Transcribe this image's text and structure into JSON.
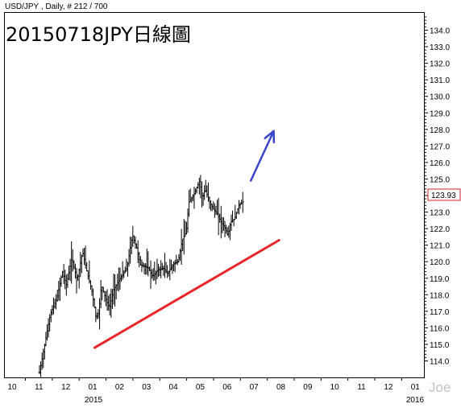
{
  "header": {
    "symbol_line": "USD/JPY , Daily, # 212 / 700",
    "title": "20150718JPY日線圖",
    "watermark": "Joe"
  },
  "price_label": "123.93",
  "colors": {
    "trendline": "#e8262a",
    "arrow": "#3a46c8",
    "price_box_border": "#d0202a",
    "bars": "#000000",
    "axis": "#000000"
  },
  "chart_data": {
    "type": "ohlc",
    "title": "20150718JPY日線圖",
    "y_axis": {
      "min": 113.0,
      "max": 134.5,
      "position": "right",
      "ticks": [
        114.0,
        115.0,
        116.0,
        117.0,
        118.0,
        119.0,
        120.0,
        121.0,
        122.0,
        123.0,
        124.0,
        125.0,
        126.0,
        127.0,
        128.0,
        129.0,
        130.0,
        131.0,
        132.0,
        133.0,
        134.0
      ]
    },
    "x_axis": {
      "tick_labels": [
        "10",
        "11",
        "12",
        "01",
        "02",
        "03",
        "04",
        "05",
        "06",
        "07",
        "08",
        "09",
        "10",
        "11",
        "12",
        "01"
      ],
      "year_labels": [
        {
          "label": "2015",
          "at": "01"
        },
        {
          "label": "2016",
          "at": "01 (second)"
        }
      ]
    },
    "last_price": 123.93,
    "price_path": [
      {
        "t": 0.0,
        "p": 113.3
      },
      {
        "t": 0.4,
        "p": 116.8
      },
      {
        "t": 0.65,
        "p": 117.8
      },
      {
        "t": 0.85,
        "p": 119.4
      },
      {
        "t": 1.0,
        "p": 118.6
      },
      {
        "t": 1.2,
        "p": 120.2
      },
      {
        "t": 1.4,
        "p": 118.9
      },
      {
        "t": 1.6,
        "p": 120.6
      },
      {
        "t": 1.75,
        "p": 119.5
      },
      {
        "t": 1.95,
        "p": 118.2
      },
      {
        "t": 2.1,
        "p": 116.6
      },
      {
        "t": 2.2,
        "p": 116.9
      },
      {
        "t": 2.3,
        "p": 118.6
      },
      {
        "t": 2.45,
        "p": 117.8
      },
      {
        "t": 2.6,
        "p": 117.2
      },
      {
        "t": 2.75,
        "p": 118.3
      },
      {
        "t": 3.0,
        "p": 119.0
      },
      {
        "t": 3.25,
        "p": 119.6
      },
      {
        "t": 3.45,
        "p": 121.6
      },
      {
        "t": 3.6,
        "p": 120.9
      },
      {
        "t": 3.75,
        "p": 119.8
      },
      {
        "t": 3.95,
        "p": 119.7
      },
      {
        "t": 4.05,
        "p": 119.6
      },
      {
        "t": 4.2,
        "p": 119.1
      },
      {
        "t": 4.4,
        "p": 119.5
      },
      {
        "t": 4.6,
        "p": 119.6
      },
      {
        "t": 4.75,
        "p": 119.3
      },
      {
        "t": 4.88,
        "p": 119.6
      },
      {
        "t": 5.0,
        "p": 119.9
      },
      {
        "t": 5.15,
        "p": 120.0
      },
      {
        "t": 5.3,
        "p": 121.3
      },
      {
        "t": 5.45,
        "p": 121.8
      },
      {
        "t": 5.55,
        "p": 123.6
      },
      {
        "t": 5.75,
        "p": 124.1
      },
      {
        "t": 5.95,
        "p": 124.9
      },
      {
        "t": 6.05,
        "p": 123.8
      },
      {
        "t": 6.15,
        "p": 124.4
      },
      {
        "t": 6.3,
        "p": 123.7
      },
      {
        "t": 6.45,
        "p": 123.2
      },
      {
        "t": 6.6,
        "p": 122.9
      },
      {
        "t": 6.75,
        "p": 122.4
      },
      {
        "t": 6.9,
        "p": 122.0
      },
      {
        "t": 7.0,
        "p": 121.6
      },
      {
        "t": 7.1,
        "p": 122.4
      },
      {
        "t": 7.25,
        "p": 122.6
      },
      {
        "t": 7.4,
        "p": 123.4
      },
      {
        "t": 7.55,
        "p": 123.6
      },
      {
        "t": 7.6,
        "p": 123.9
      }
    ],
    "annotations": [
      {
        "type": "trendline",
        "from": {
          "t": 2.05,
          "p": 114.8
        },
        "to": {
          "t": 8.9,
          "p": 121.3
        },
        "color": "red"
      },
      {
        "type": "arrow",
        "from": {
          "t": 7.85,
          "p": 124.9
        },
        "to": {
          "t": 8.7,
          "p": 127.9
        },
        "color": "blue"
      }
    ]
  }
}
